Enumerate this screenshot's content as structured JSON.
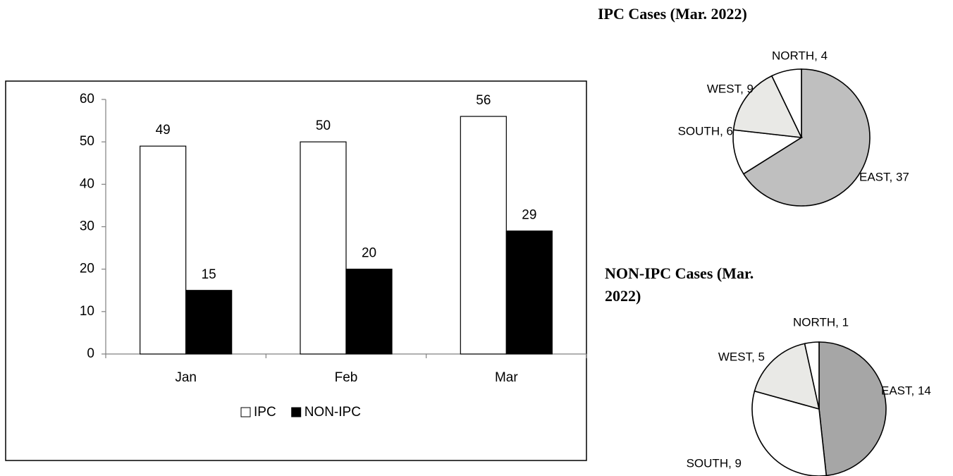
{
  "chart_data": [
    {
      "type": "bar",
      "categories": [
        "Jan",
        "Feb",
        "Mar"
      ],
      "series": [
        {
          "name": "IPC",
          "color": "#ffffff",
          "values": [
            49,
            50,
            56
          ]
        },
        {
          "name": "NON-IPC",
          "color": "#000000",
          "values": [
            15,
            20,
            29
          ]
        }
      ],
      "ylim": [
        0,
        60
      ],
      "yticks": [
        0,
        10,
        20,
        30,
        40,
        50,
        60
      ],
      "grid": false,
      "legend": "bottom"
    },
    {
      "type": "pie",
      "title": "IPC Cases (Mar. 2022)",
      "values": [
        37,
        6,
        9,
        4
      ],
      "value_labels": [
        "EAST, 37",
        "SOUTH, 6",
        "WEST, 9",
        "NORTH, 4"
      ],
      "colors": [
        "#bfbfbf",
        "#ffffff",
        "#e9e9e6",
        "#ffffff"
      ]
    },
    {
      "type": "pie",
      "title": "NON-IPC Cases (Mar. 2022)",
      "values": [
        14,
        9,
        5,
        1
      ],
      "value_labels": [
        "EAST, 14",
        "SOUTH, 9",
        "WEST, 5",
        "NORTH, 1"
      ],
      "colors": [
        "#a6a6a6",
        "#ffffff",
        "#e9e9e6",
        "#ffffff"
      ]
    }
  ]
}
